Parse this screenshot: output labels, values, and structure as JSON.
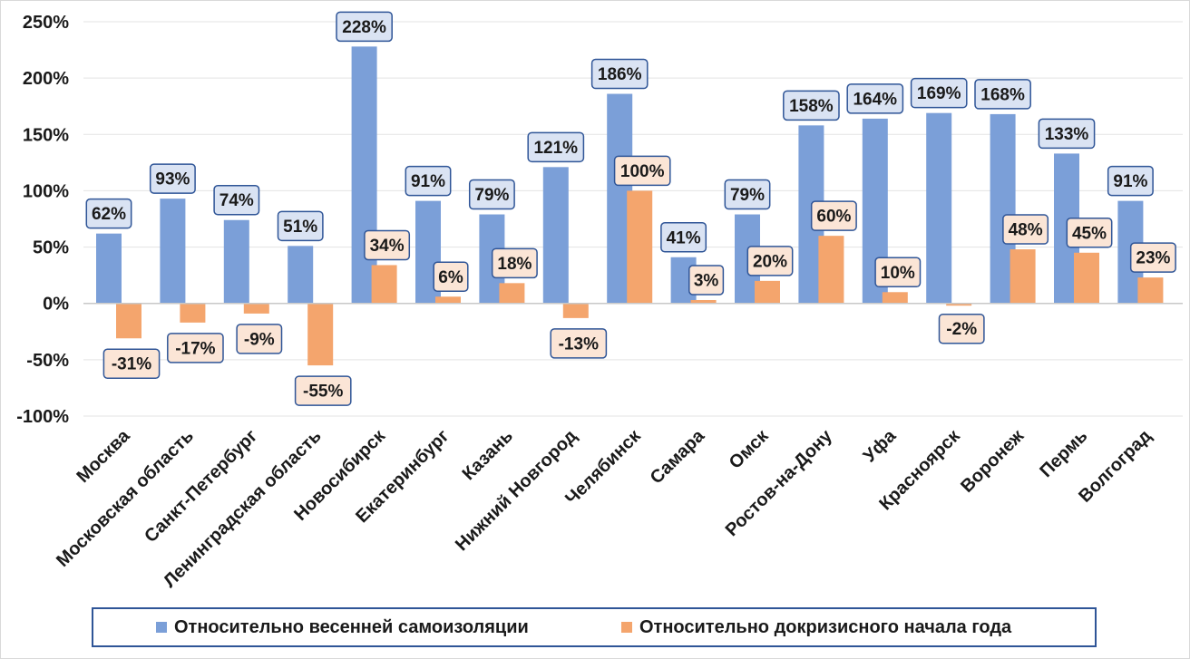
{
  "chart_data": {
    "type": "bar",
    "categories": [
      "Москва",
      "Московская область",
      "Санкт-Петербург",
      "Ленинградская область",
      "Новосибирск",
      "Екатеринбург",
      "Казань",
      "Нижний Новгород",
      "Челябинск",
      "Самара",
      "Омск",
      "Ростов-на-Дону",
      "Уфа",
      "Красноярск",
      "Воронеж",
      "Пермь",
      "Волгоград"
    ],
    "series": [
      {
        "name": "Относительно весенней самоизоляции",
        "color": "#7b9fd8",
        "values": [
          62,
          93,
          74,
          51,
          228,
          91,
          79,
          121,
          186,
          41,
          79,
          158,
          164,
          169,
          168,
          133,
          91
        ],
        "labels": [
          "62%",
          "93%",
          "74%",
          "51%",
          "228%",
          "91%",
          "79%",
          "121%",
          "186%",
          "41%",
          "79%",
          "158%",
          "164%",
          "169%",
          "168%",
          "133%",
          "91%"
        ]
      },
      {
        "name": "Относительно докризисного начала года",
        "color": "#f4a56d",
        "values": [
          -31,
          -17,
          -9,
          -55,
          34,
          6,
          18,
          -13,
          100,
          3,
          20,
          60,
          10,
          -2,
          48,
          45,
          23
        ],
        "labels": [
          "-31%",
          "-17%",
          "-9%",
          "-55%",
          "34%",
          "6%",
          "18%",
          "-13%",
          "100%",
          "3%",
          "20%",
          "60%",
          "10%",
          "-2%",
          "48%",
          "45%",
          "23%"
        ]
      }
    ],
    "yticks": [
      {
        "value": 250,
        "label": "250%"
      },
      {
        "value": 200,
        "label": "200%"
      },
      {
        "value": 150,
        "label": "150%"
      },
      {
        "value": 100,
        "label": "100%"
      },
      {
        "value": 50,
        "label": "50%"
      },
      {
        "value": 0,
        "label": "0%"
      },
      {
        "value": -50,
        "label": "-50%"
      },
      {
        "value": -100,
        "label": "-100%"
      }
    ],
    "ylim": [
      -100,
      250
    ],
    "grid": true,
    "legend_position": "bottom"
  }
}
